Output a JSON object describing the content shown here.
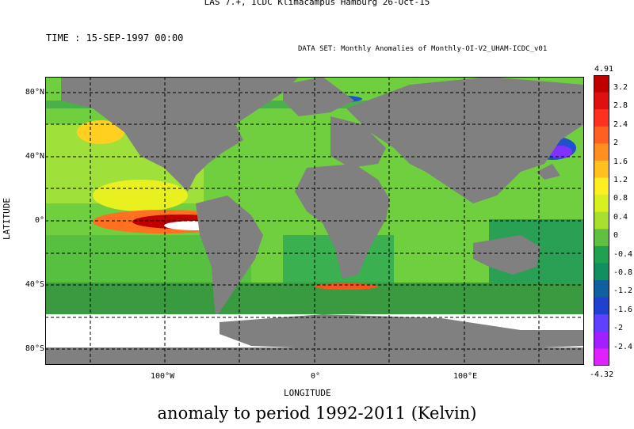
{
  "header": "LAS 7.+, ICDC Klimacampus Hamburg 26-Oct-15",
  "time_label": "TIME : 15-SEP-1997 00:00",
  "dataset_label": "DATA SET: Monthly Anomalies of Monthly-OI-V2_UHAM-ICDC_v01",
  "axes": {
    "xlabel": "LONGITUDE",
    "ylabel": "LATITUDE",
    "lat_ticks": [
      "80°N",
      "40°N",
      "0°",
      "40°S",
      "80°S"
    ],
    "lon_ticks": [
      "100°W",
      "0°",
      "100°E"
    ]
  },
  "colorbar": {
    "max_label": "4.91",
    "min_label": "-4.32",
    "ticks": [
      "3.2",
      "2.8",
      "2.4",
      "2",
      "1.6",
      "1.2",
      "0.8",
      "0.4",
      "0",
      "-0.4",
      "-0.8",
      "-1.2",
      "-1.6",
      "-2",
      "-2.4"
    ],
    "colors": [
      "#c00000",
      "#e01010",
      "#ff3020",
      "#ff6020",
      "#ff9020",
      "#ffc020",
      "#ffee20",
      "#d8f020",
      "#a8e030",
      "#60c040",
      "#20a050",
      "#109060",
      "#1060a0",
      "#2040d0",
      "#6040ff",
      "#a020ff",
      "#e020ff"
    ]
  },
  "caption": "anomaly to period 1992-2011 (Kelvin)",
  "map": {
    "land_color": "#808080",
    "ice_color": "#ffffff",
    "ocean_base": "#6fcf3f"
  }
}
